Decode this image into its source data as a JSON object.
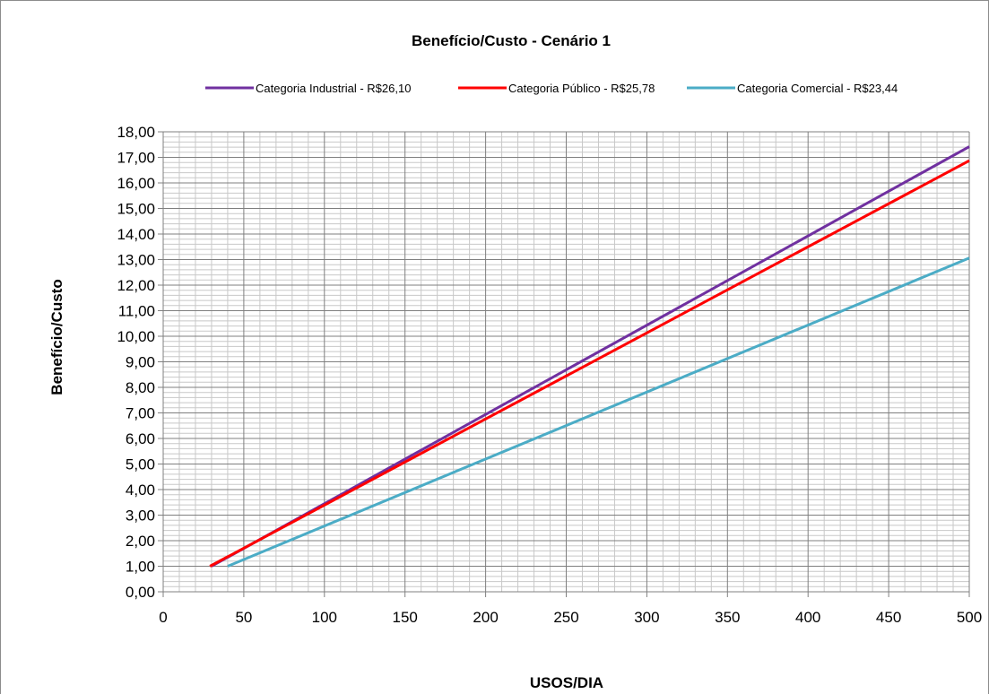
{
  "chart_data": {
    "type": "line",
    "title": "Benefício/Custo - Cenário 1",
    "xlabel": "USOS/DIA",
    "ylabel": "Benefício/Custo",
    "xlim": [
      0,
      500
    ],
    "ylim": [
      0,
      18
    ],
    "x_ticks": [
      "0",
      "50",
      "100",
      "150",
      "200",
      "250",
      "300",
      "350",
      "400",
      "450",
      "500"
    ],
    "y_ticks": [
      "0,00",
      "1,00",
      "2,00",
      "3,00",
      "4,00",
      "5,00",
      "6,00",
      "7,00",
      "8,00",
      "9,00",
      "10,00",
      "11,00",
      "12,00",
      "13,00",
      "14,00",
      "15,00",
      "16,00",
      "17,00",
      "18,00"
    ],
    "grid": true,
    "legend_position": "top",
    "series": [
      {
        "name": "Categoria Industrial - R$26,10",
        "color": "#7030a0",
        "points": [
          [
            30,
            1.0
          ],
          [
            500,
            17.42
          ]
        ]
      },
      {
        "name": "Categoria Público - R$25,78",
        "color": "#ff0000",
        "points": [
          [
            29,
            1.0
          ],
          [
            500,
            16.87
          ]
        ]
      },
      {
        "name": "Categoria Comercial - R$23,44",
        "color": "#4bacc6",
        "points": [
          [
            40,
            1.0
          ],
          [
            500,
            13.06
          ]
        ]
      }
    ]
  }
}
